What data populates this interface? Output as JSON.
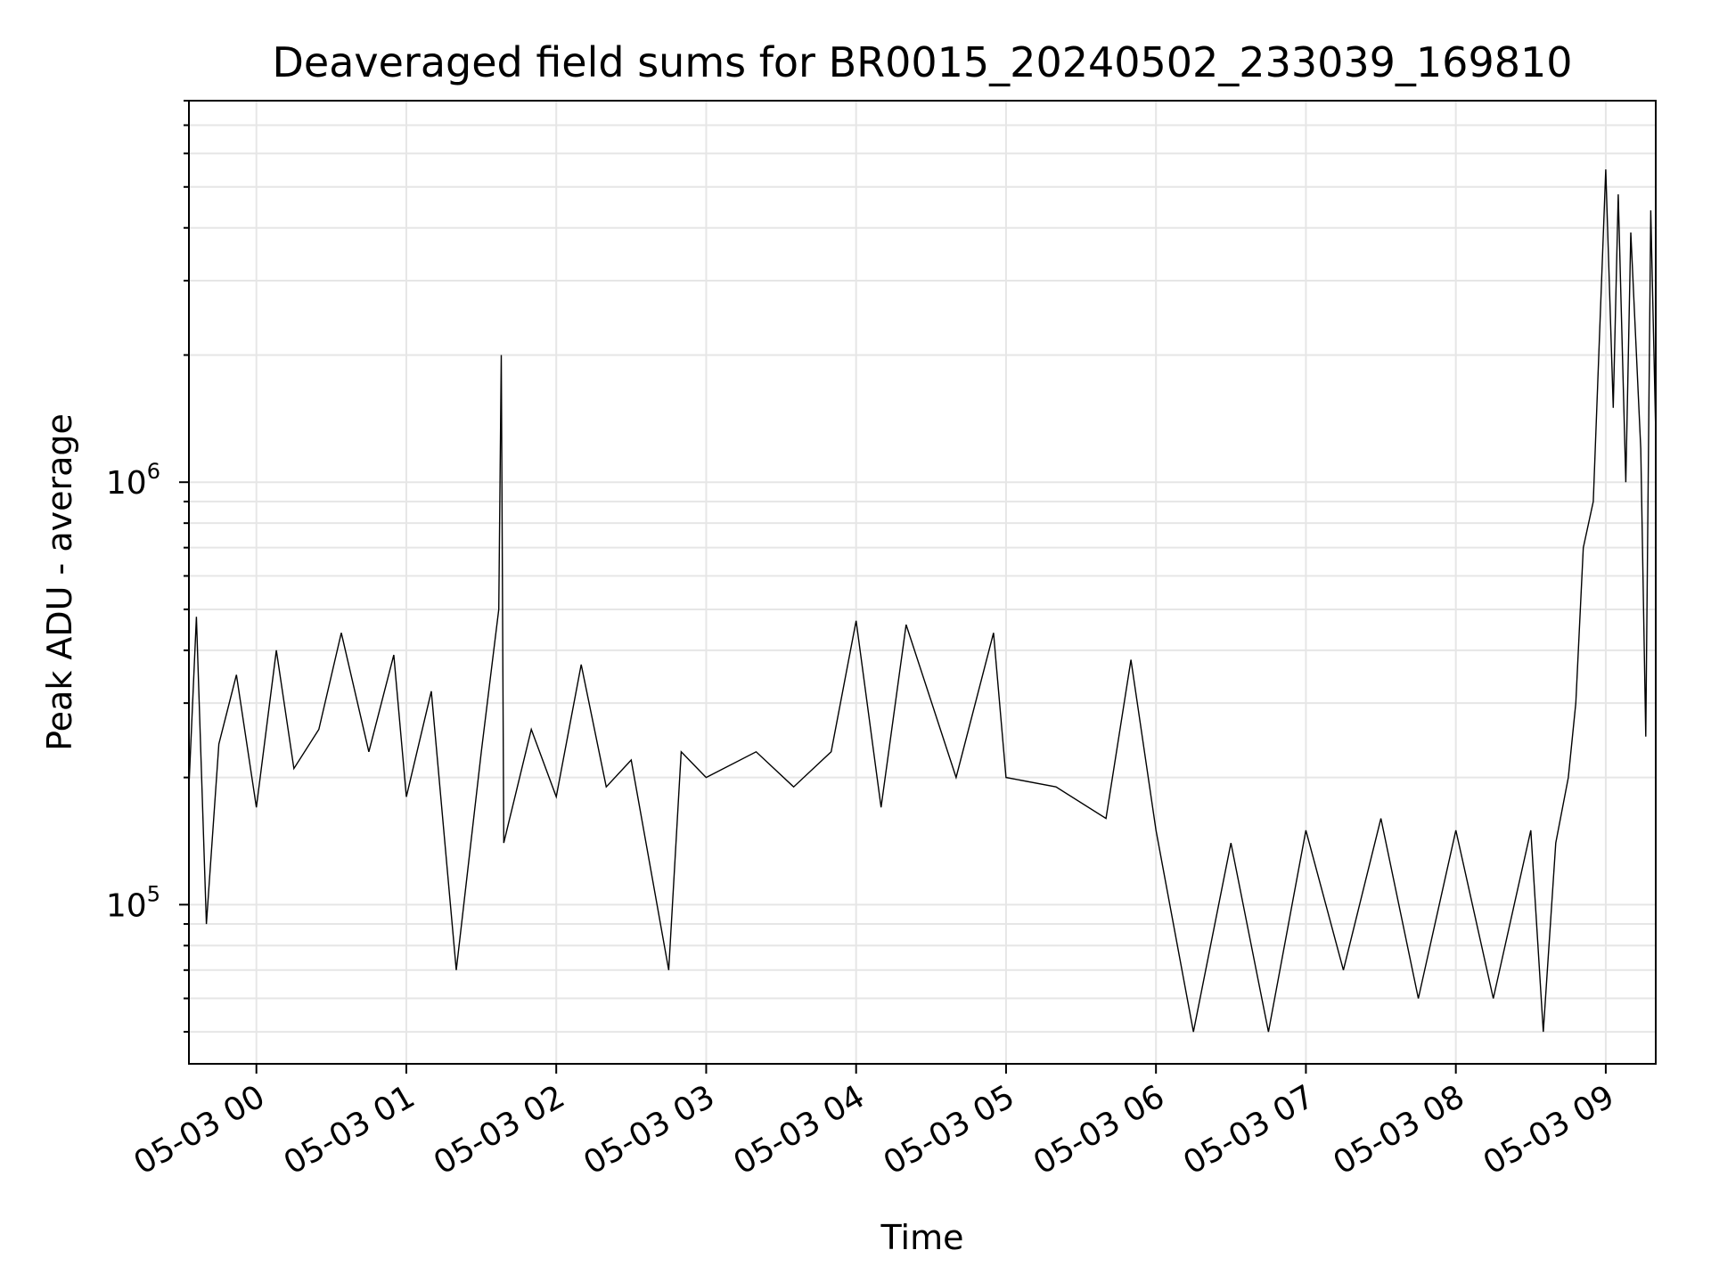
{
  "chart_data": {
    "type": "line",
    "title": "Deaveraged field sums for BR0015_20240502_233039_169810",
    "xlabel": "Time",
    "ylabel": "Peak ADU - average",
    "yscale": "log",
    "xlim": [
      "05-02 23:33",
      "05-03 09:20"
    ],
    "ylim": [
      42000,
      8000000
    ],
    "grid": true,
    "line_color": "#000000",
    "x_ticks": [
      "05-03 00",
      "05-03 01",
      "05-03 02",
      "05-03 03",
      "05-03 04",
      "05-03 05",
      "05-03 06",
      "05-03 07",
      "05-03 08",
      "05-03 09"
    ],
    "y_ticks": [
      {
        "value": 100000,
        "base": "10",
        "exponent": "5"
      },
      {
        "value": 1000000,
        "base": "10",
        "exponent": "6"
      }
    ],
    "series": [
      {
        "points": [
          [
            "05-02 23:33",
            190000
          ],
          [
            "05-02 23:36",
            480000
          ],
          [
            "05-02 23:40",
            90000
          ],
          [
            "05-02 23:45",
            240000
          ],
          [
            "05-02 23:52",
            350000
          ],
          [
            "05-03 00:00",
            170000
          ],
          [
            "05-03 00:08",
            400000
          ],
          [
            "05-03 00:15",
            210000
          ],
          [
            "05-03 00:25",
            260000
          ],
          [
            "05-03 00:34",
            440000
          ],
          [
            "05-03 00:45",
            230000
          ],
          [
            "05-03 00:55",
            390000
          ],
          [
            "05-03 01:00",
            180000
          ],
          [
            "05-03 01:10",
            320000
          ],
          [
            "05-03 01:20",
            70000
          ],
          [
            "05-03 01:30",
            230000
          ],
          [
            "05-03 01:37",
            500000
          ],
          [
            "05-03 01:38",
            2000000
          ],
          [
            "05-03 01:39",
            140000
          ],
          [
            "05-03 01:50",
            260000
          ],
          [
            "05-03 02:00",
            180000
          ],
          [
            "05-03 02:10",
            370000
          ],
          [
            "05-03 02:20",
            190000
          ],
          [
            "05-03 02:30",
            220000
          ],
          [
            "05-03 02:45",
            70000
          ],
          [
            "05-03 02:50",
            230000
          ],
          [
            "05-03 03:00",
            200000
          ],
          [
            "05-03 03:20",
            230000
          ],
          [
            "05-03 03:35",
            190000
          ],
          [
            "05-03 03:50",
            230000
          ],
          [
            "05-03 04:00",
            470000
          ],
          [
            "05-03 04:10",
            170000
          ],
          [
            "05-03 04:20",
            460000
          ],
          [
            "05-03 04:40",
            200000
          ],
          [
            "05-03 04:55",
            440000
          ],
          [
            "05-03 05:00",
            200000
          ],
          [
            "05-03 05:20",
            190000
          ],
          [
            "05-03 05:40",
            160000
          ],
          [
            "05-03 05:50",
            380000
          ],
          [
            "05-03 06:00",
            150000
          ],
          [
            "05-03 06:15",
            50000
          ],
          [
            "05-03 06:30",
            140000
          ],
          [
            "05-03 06:45",
            50000
          ],
          [
            "05-03 07:00",
            150000
          ],
          [
            "05-03 07:15",
            70000
          ],
          [
            "05-03 07:30",
            160000
          ],
          [
            "05-03 07:45",
            60000
          ],
          [
            "05-03 08:00",
            150000
          ],
          [
            "05-03 08:15",
            60000
          ],
          [
            "05-03 08:30",
            150000
          ],
          [
            "05-03 08:35",
            50000
          ],
          [
            "05-03 08:40",
            140000
          ],
          [
            "05-03 08:45",
            200000
          ],
          [
            "05-03 08:48",
            300000
          ],
          [
            "05-03 08:51",
            700000
          ],
          [
            "05-03 08:55",
            900000
          ],
          [
            "05-03 09:00",
            5500000
          ],
          [
            "05-03 09:03",
            1500000
          ],
          [
            "05-03 09:05",
            4800000
          ],
          [
            "05-03 09:08",
            1000000
          ],
          [
            "05-03 09:10",
            3900000
          ],
          [
            "05-03 09:14",
            1200000
          ],
          [
            "05-03 09:16",
            250000
          ],
          [
            "05-03 09:18",
            4400000
          ],
          [
            "05-03 09:20",
            1300000
          ]
        ]
      }
    ]
  }
}
